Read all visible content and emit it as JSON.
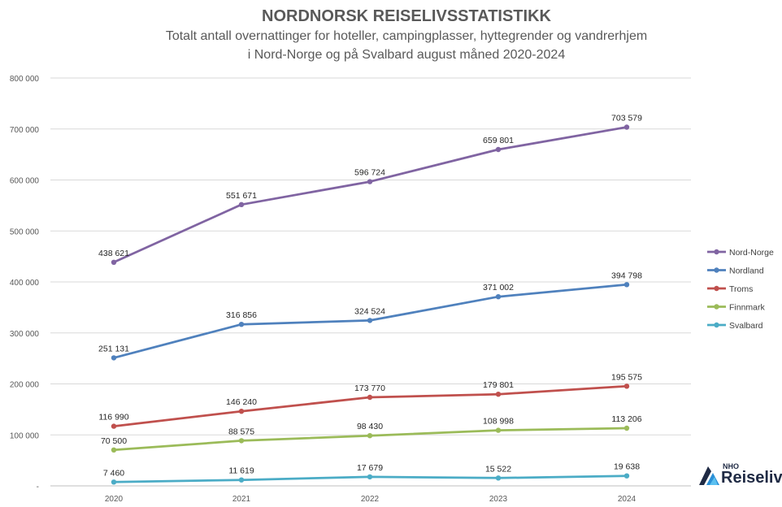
{
  "title": "NORDNORSK REISELIVSSTATISTIKK",
  "subtitle_line1": "Totalt antall overnattinger for hoteller, campingplasser, hyttegrender og vandrerhjem",
  "subtitle_line2": "i Nord-Norge og på Svalbard august måned 2020-2024",
  "logo": {
    "small": "NHO",
    "name": "Reiseliv",
    "icon": "nho-reiseliv-logo-icon"
  },
  "chart_data": {
    "type": "line",
    "title": "NORDNORSK REISELIVSSTATISTIKK",
    "x": [
      "2020",
      "2021",
      "2022",
      "2023",
      "2024"
    ],
    "ylim": [
      0,
      800000
    ],
    "yticks": [
      "-",
      "100 000",
      "200 000",
      "300 000",
      "400 000",
      "500 000",
      "600 000",
      "700 000",
      "800 000"
    ],
    "grid": true,
    "legend_position": "right",
    "series": [
      {
        "name": "Nord-Norge",
        "color": "#8064a2",
        "values": [
          438621,
          551671,
          596724,
          659801,
          703579
        ],
        "labels": [
          "438 621",
          "551 671",
          "596 724",
          "659 801",
          "703 579"
        ]
      },
      {
        "name": "Nordland",
        "color": "#4f81bd",
        "values": [
          251131,
          316856,
          324524,
          371002,
          394798
        ],
        "labels": [
          "251 131",
          "316 856",
          "324 524",
          "371 002",
          "394 798"
        ]
      },
      {
        "name": "Troms",
        "color": "#c0504d",
        "values": [
          116990,
          146240,
          173770,
          179801,
          195575
        ],
        "labels": [
          "116 990",
          "146 240",
          "173 770",
          "179 801",
          "195 575"
        ]
      },
      {
        "name": "Finnmark",
        "color": "#9bbb59",
        "values": [
          70500,
          88575,
          98430,
          108998,
          113206
        ],
        "labels": [
          "70 500",
          "88 575",
          "98 430",
          "108 998",
          "113 206"
        ]
      },
      {
        "name": "Svalbard",
        "color": "#4bacc6",
        "values": [
          7460,
          11619,
          17679,
          15522,
          19638
        ],
        "labels": [
          "7 460",
          "11 619",
          "17 679",
          "15 522",
          "19 638"
        ]
      }
    ]
  }
}
